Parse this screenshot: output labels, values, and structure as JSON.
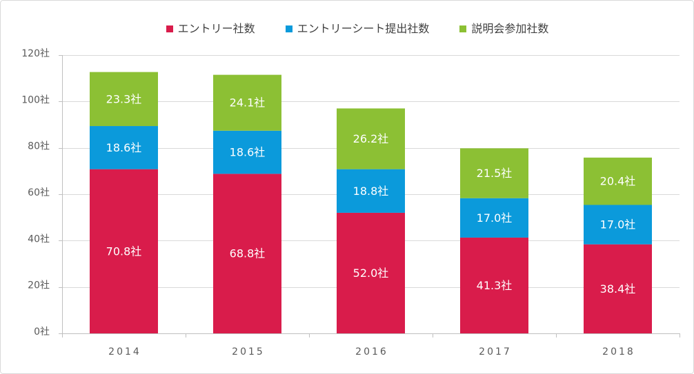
{
  "chart_data": {
    "type": "bar",
    "stacked": true,
    "categories": [
      "2014",
      "2015",
      "2016",
      "2017",
      "2018"
    ],
    "series": [
      {
        "name": "エントリー社数",
        "color": "#D91C4B",
        "values": [
          70.8,
          68.8,
          52.0,
          41.3,
          38.4
        ],
        "labels": [
          "70.8社",
          "68.8社",
          "52.0社",
          "41.3社",
          "38.4社"
        ]
      },
      {
        "name": "エントリーシート提出社数",
        "color": "#0B9ADB",
        "values": [
          18.6,
          18.6,
          18.8,
          17.0,
          17.0
        ],
        "labels": [
          "18.6社",
          "18.6社",
          "18.8社",
          "17.0社",
          "17.0社"
        ]
      },
      {
        "name": "説明会参加社数",
        "color": "#8CC034",
        "values": [
          23.3,
          24.1,
          26.2,
          21.5,
          20.4
        ],
        "labels": [
          "23.3社",
          "24.1社",
          "26.2社",
          "21.5社",
          "20.4社"
        ]
      }
    ],
    "ylim": [
      0,
      120
    ],
    "y_ticks": [
      0,
      20,
      40,
      60,
      80,
      100,
      120
    ],
    "y_tick_labels": [
      "0社",
      "20社",
      "40社",
      "60社",
      "80社",
      "100社",
      "120社"
    ],
    "grid": true,
    "legend": "top-center",
    "colors": {
      "axis": "#BFBFBF",
      "grid": "#D9D9D9",
      "text": "#595959",
      "legend_text": "#404040",
      "border": "#D9D9D9"
    }
  }
}
